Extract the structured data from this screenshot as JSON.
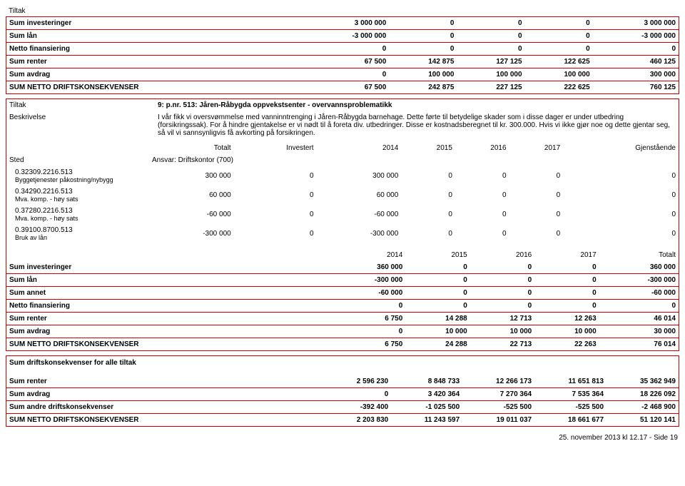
{
  "header_tiltak": "Tiltak",
  "box1": {
    "rows": [
      {
        "label": "Sum investeringer",
        "v": [
          "3 000 000",
          "0",
          "0",
          "0",
          "3 000 000"
        ]
      },
      {
        "label": "Sum lån",
        "v": [
          "-3 000 000",
          "0",
          "0",
          "0",
          "-3 000 000"
        ]
      },
      {
        "label": "Netto finansiering",
        "v": [
          "0",
          "0",
          "0",
          "0",
          "0"
        ]
      },
      {
        "label": "Sum renter",
        "v": [
          "67 500",
          "142 875",
          "127 125",
          "122 625",
          "460 125"
        ]
      },
      {
        "label": "Sum avdrag",
        "v": [
          "0",
          "100 000",
          "100 000",
          "100 000",
          "300 000"
        ]
      },
      {
        "label": "SUM NETTO DRIFTSKONSEKVENSER",
        "v": [
          "67 500",
          "242 875",
          "227 125",
          "222 625",
          "760 125"
        ]
      }
    ]
  },
  "box2": {
    "tiltak_label": "Tiltak",
    "tiltak_val": "9: p.nr. 513: Jåren-Råbygda oppvekstsenter - overvannsproblematikk",
    "besk_label": "Beskrivelse",
    "besk_val": "I vår fikk vi oversvømmelse med vanninntrenging i Jåren-Råbygda barnehage. Dette førte til betydelige skader som i disse dager er under utbedring (forsikringssak). For å hindre gjentakelse er vi nødt til å foreta div. utbedringer. Disse er kostnadsberegnet til kr. 300.000. Hvis vi ikke gjør noe og dette gjentar seg, så vil vi sannsynligvis få avkorting på forsikringen.",
    "headers": [
      "Totalt",
      "Investert",
      "2014",
      "2015",
      "2016",
      "2017",
      "Gjenstående"
    ],
    "sted_label": "Sted",
    "sted_val": "Ansvar: Driftskontor (700)",
    "items": [
      {
        "code": "0.32309.2216.513",
        "desc": "Byggetjenester påkostning/nybygg",
        "v": [
          "300 000",
          "0",
          "300 000",
          "0",
          "0",
          "0",
          "0"
        ]
      },
      {
        "code": "0.34290.2216.513",
        "desc": "Mva. komp. - høy sats",
        "v": [
          "60 000",
          "0",
          "60 000",
          "0",
          "0",
          "0",
          "0"
        ]
      },
      {
        "code": "0.37280.2216.513",
        "desc": "Mva. komp. - høy sats",
        "v": [
          "-60 000",
          "0",
          "-60 000",
          "0",
          "0",
          "0",
          "0"
        ]
      },
      {
        "code": "0.39100.8700.513",
        "desc": "Bruk av lån",
        "v": [
          "-300 000",
          "0",
          "-300 000",
          "0",
          "0",
          "0",
          "0"
        ]
      }
    ],
    "headers2": [
      "2014",
      "2015",
      "2016",
      "2017",
      "Totalt"
    ],
    "rows2": [
      {
        "label": "Sum investeringer",
        "v": [
          "360 000",
          "0",
          "0",
          "0",
          "360 000"
        ]
      },
      {
        "label": "Sum lån",
        "v": [
          "-300 000",
          "0",
          "0",
          "0",
          "-300 000"
        ]
      },
      {
        "label": "Sum annet",
        "v": [
          "-60 000",
          "0",
          "0",
          "0",
          "-60 000"
        ]
      },
      {
        "label": "Netto finansiering",
        "v": [
          "0",
          "0",
          "0",
          "0",
          "0"
        ]
      },
      {
        "label": "Sum renter",
        "v": [
          "6 750",
          "14 288",
          "12 713",
          "12 263",
          "46 014"
        ]
      },
      {
        "label": "Sum avdrag",
        "v": [
          "0",
          "10 000",
          "10 000",
          "10 000",
          "30 000"
        ]
      },
      {
        "label": "SUM NETTO DRIFTSKONSEKVENSER",
        "v": [
          "6 750",
          "24 288",
          "22 713",
          "22 263",
          "76 014"
        ]
      }
    ]
  },
  "box3": {
    "title": "Sum driftskonsekvenser for alle tiltak",
    "rows": [
      {
        "label": "Sum renter",
        "v": [
          "2 596 230",
          "8 848 733",
          "12 266 173",
          "11 651 813",
          "35 362 949"
        ]
      },
      {
        "label": "Sum avdrag",
        "v": [
          "0",
          "3 420 364",
          "7 270 364",
          "7 535 364",
          "18 226 092"
        ]
      },
      {
        "label": "Sum andre driftskonsekvenser",
        "v": [
          "-392 400",
          "-1 025 500",
          "-525 500",
          "-525 500",
          "-2 468 900"
        ]
      },
      {
        "label": "SUM NETTO DRIFTSKONSEKVENSER",
        "v": [
          "2 203 830",
          "11 243 597",
          "19 011 037",
          "18 661 677",
          "51 120 141"
        ]
      }
    ]
  },
  "footer": "25. november 2013 kl 12.17 - Side 19"
}
